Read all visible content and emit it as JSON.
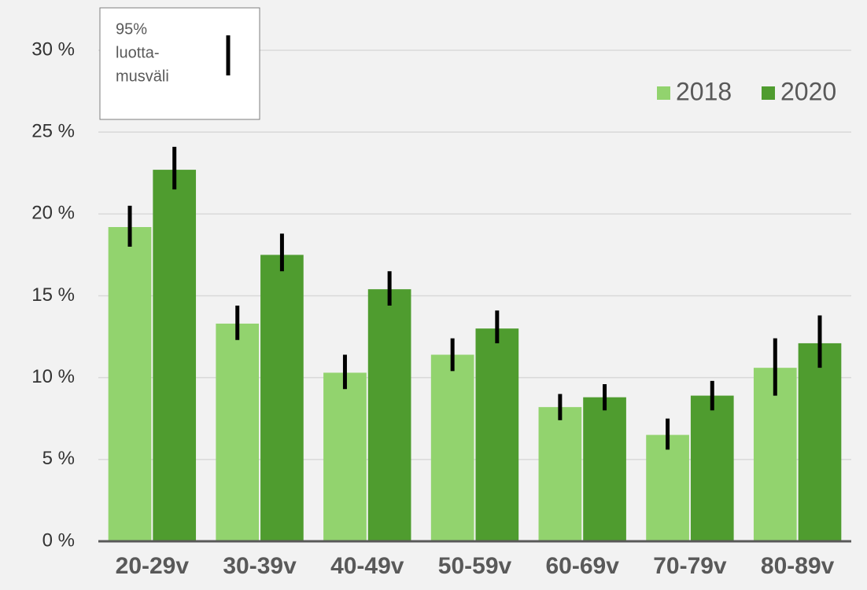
{
  "chart_data": {
    "type": "bar",
    "categories": [
      "20-29v",
      "30-39v",
      "40-49v",
      "50-59v",
      "60-69v",
      "70-79v",
      "80-89v"
    ],
    "series": [
      {
        "name": "2018",
        "color": "#92d36e",
        "values": [
          19.2,
          13.3,
          10.3,
          11.4,
          8.2,
          6.5,
          10.6
        ],
        "ci_low": [
          18.0,
          12.3,
          9.3,
          10.4,
          7.4,
          5.6,
          8.9
        ],
        "ci_high": [
          20.5,
          14.4,
          11.4,
          12.4,
          9.0,
          7.5,
          12.4
        ]
      },
      {
        "name": "2020",
        "color": "#4f9c2f",
        "values": [
          22.7,
          17.5,
          15.4,
          13.0,
          8.8,
          8.9,
          12.1
        ],
        "ci_low": [
          21.5,
          16.5,
          14.4,
          12.1,
          8.0,
          8.0,
          10.6
        ],
        "ci_high": [
          24.1,
          18.8,
          16.5,
          14.1,
          9.6,
          9.8,
          13.8
        ]
      }
    ],
    "ci_legend": [
      "95%",
      "luotta-",
      "musväli"
    ],
    "ylim": [
      0,
      30
    ],
    "yticks": [
      {
        "value": 0,
        "label": "0 %"
      },
      {
        "value": 5,
        "label": "5 %"
      },
      {
        "value": 10,
        "label": "10 %"
      },
      {
        "value": 15,
        "label": "15 %"
      },
      {
        "value": 20,
        "label": "20 %"
      },
      {
        "value": 25,
        "label": "25 %"
      },
      {
        "value": 30,
        "label": "30 %"
      }
    ],
    "grid": true,
    "legend": "top-right"
  }
}
